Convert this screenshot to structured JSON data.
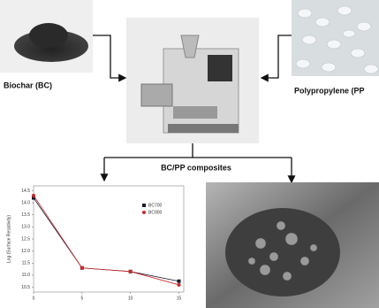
{
  "labels": {
    "biochar": "Biochar (BC)",
    "polypropylene": "Polypropylene (PP",
    "composites": "BC/PP composites"
  },
  "chart_data": {
    "type": "line",
    "y_label": "Log (Surface Resistivity)",
    "x": [
      0,
      5,
      10,
      15
    ],
    "series": [
      {
        "name": "BC700",
        "color": "#1a1a2e",
        "values": [
          14.2,
          11.3,
          11.15,
          10.75
        ]
      },
      {
        "name": "BC900",
        "color": "#cc2a2a",
        "values": [
          14.3,
          11.3,
          11.15,
          10.6
        ]
      }
    ],
    "xlim": [
      0,
      15.5
    ],
    "xticks": [
      0,
      5,
      10,
      15
    ],
    "ylim": [
      10.3,
      14.7
    ],
    "yticks": [
      {
        "value": 10.5,
        "label": "10.5"
      },
      {
        "value": 11,
        "label": "11.0"
      },
      {
        "value": 11.5,
        "label": "11.5"
      },
      {
        "value": 12,
        "label": "12.0"
      },
      {
        "value": 12.5,
        "label": "12.5"
      },
      {
        "value": 13,
        "label": "13.0"
      },
      {
        "value": 13.5,
        "label": "13.5"
      },
      {
        "value": 14,
        "label": "14.0"
      },
      {
        "value": 14.5,
        "label": "14.5"
      }
    ],
    "legend": "upper right"
  }
}
